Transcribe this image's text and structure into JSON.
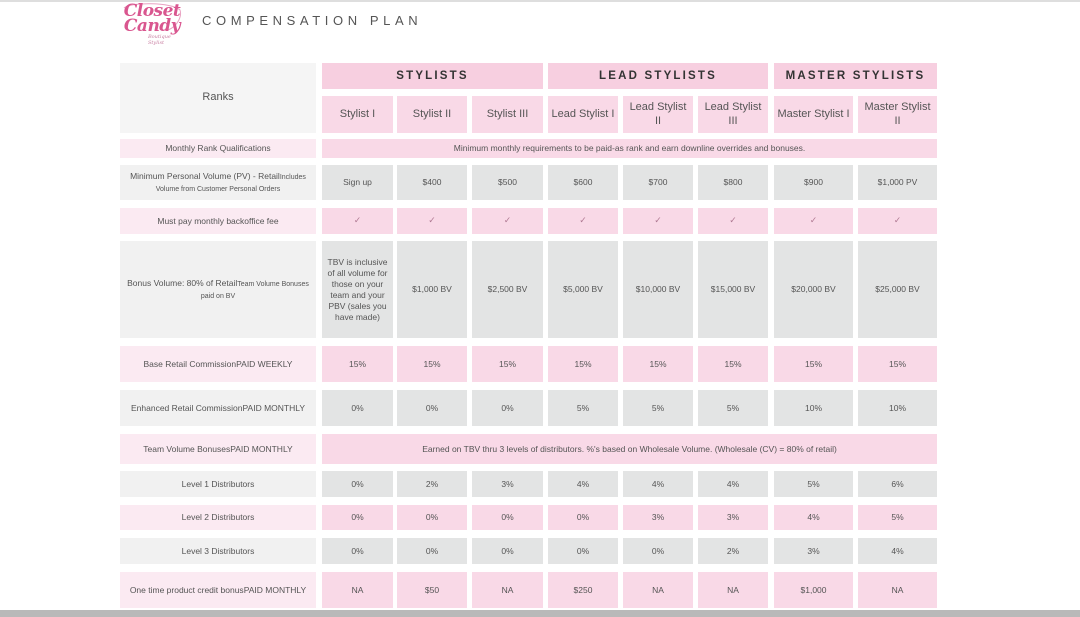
{
  "logo": {
    "text_line1": "Closet",
    "text_line2": "Candy",
    "tagline": "Boutique Stylist"
  },
  "page_title": "COMPENSATION PLAN",
  "header": {
    "corner_label": "Ranks",
    "groups": [
      "STYLISTS",
      "LEAD STYLISTS",
      "MASTER STYLISTS"
    ],
    "ranks": [
      "Stylist I",
      "Stylist II",
      "Stylist III",
      "Lead Stylist I",
      "Lead Stylist II",
      "Lead Stylist III",
      "Master Stylist I",
      "Master Stylist II"
    ]
  },
  "rows": {
    "rank_qual": {
      "label": "Monthly Rank Qualifications",
      "span_text": "Minimum monthly requirements to be paid-as rank and earn downline overrides and bonuses."
    },
    "min_pv": {
      "label": "Minimum Personal Volume (PV) - Retail",
      "sublabel": "Includes Volume from Customer Personal Orders",
      "values": [
        "Sign up",
        "$400",
        "$500",
        "$600",
        "$700",
        "$800",
        "$900",
        "$1,000 PV"
      ]
    },
    "backoffice": {
      "label": "Must pay monthly backoffice fee",
      "values": [
        "✓",
        "✓",
        "✓",
        "✓",
        "✓",
        "✓",
        "✓",
        "✓"
      ]
    },
    "bonus_volume": {
      "label": "Bonus Volume: 80% of Retail",
      "sublabel": "Team Volume Bonuses paid on BV",
      "values": [
        "TBV is inclusive of all volume for those on your team and your PBV (sales you have made)",
        "$1,000 BV",
        "$2,500 BV",
        "$5,000 BV",
        "$10,000 BV",
        "$15,000 BV",
        "$20,000 BV",
        "$25,000 BV"
      ]
    },
    "base_retail": {
      "label": "Base Retail Commission",
      "sublabel": "PAID WEEKLY",
      "values": [
        "15%",
        "15%",
        "15%",
        "15%",
        "15%",
        "15%",
        "15%",
        "15%"
      ]
    },
    "enhanced_retail": {
      "label": "Enhanced Retail Commission",
      "sublabel": "PAID MONTHLY",
      "values": [
        "0%",
        "0%",
        "0%",
        "5%",
        "5%",
        "5%",
        "10%",
        "10%"
      ]
    },
    "team_volume": {
      "label": "Team Volume Bonuses",
      "sublabel": "PAID MONTHLY",
      "span_text": "Earned on TBV thru 3 levels of distributors. %'s based on Wholesale Volume. (Wholesale (CV) = 80% of retail)"
    },
    "level1": {
      "label": "Level 1 Distributors",
      "values": [
        "0%",
        "2%",
        "3%",
        "4%",
        "4%",
        "4%",
        "5%",
        "6%"
      ]
    },
    "level2": {
      "label": "Level 2 Distributors",
      "values": [
        "0%",
        "0%",
        "0%",
        "0%",
        "3%",
        "3%",
        "4%",
        "5%"
      ]
    },
    "level3": {
      "label": "Level 3 Distributors",
      "values": [
        "0%",
        "0%",
        "0%",
        "0%",
        "0%",
        "2%",
        "3%",
        "4%"
      ]
    },
    "credit_bonus": {
      "label": "One time product credit bonus",
      "sublabel": "PAID MONTHLY",
      "values": [
        "NA",
        "$50",
        "NA",
        "$250",
        "NA",
        "NA",
        "$1,000",
        "NA"
      ]
    }
  },
  "colors": {
    "accent_pink": "#f9d9e7",
    "group_pink": "#f7cfe0",
    "row_gray": "#e3e4e4",
    "logo_pink": "#d9568f"
  }
}
